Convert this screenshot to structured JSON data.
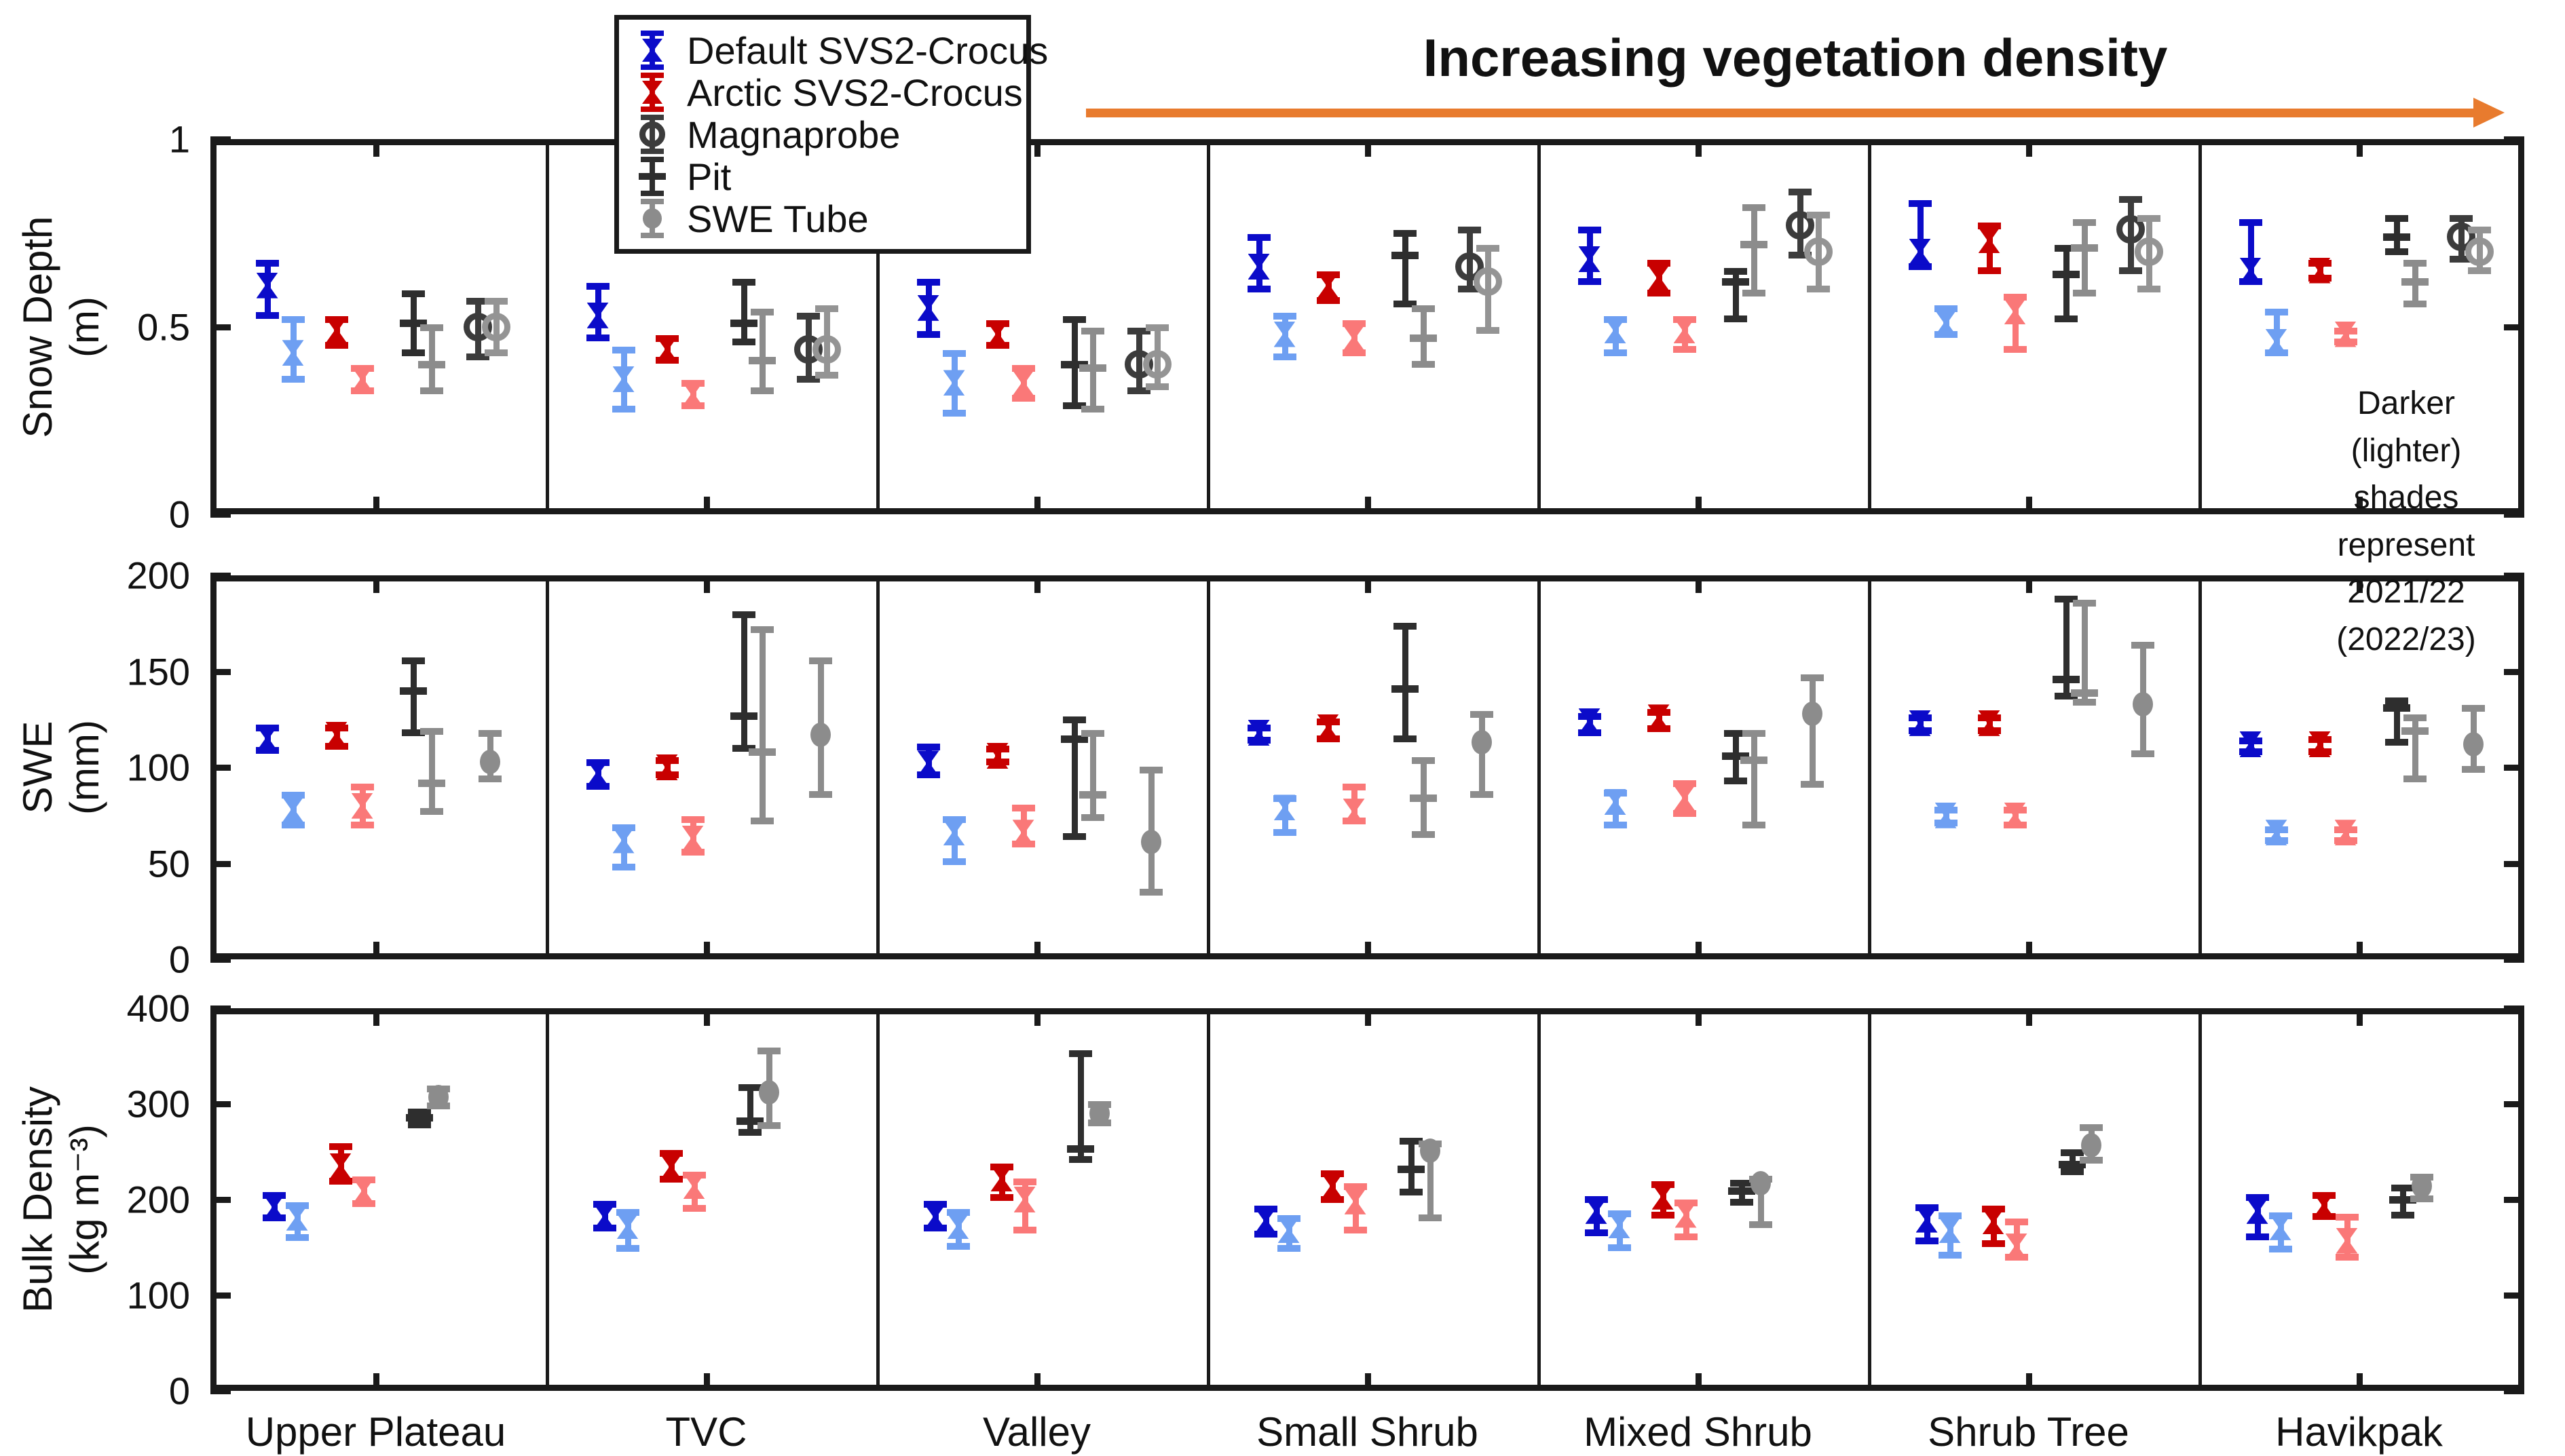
{
  "figure": {
    "background": "#ffffff",
    "axis_color": "#1a1a1a"
  },
  "annotations": {
    "veg_title": "Increasing vegetation density",
    "arrow_color": "#E87B2E",
    "shade_note_line1": "Darker (lighter)",
    "shade_note_line2": "shades represent",
    "shade_note_line3": "2021/22 (2022/23)"
  },
  "legend": {
    "items": [
      {
        "label": "Default SVS2-Crocus",
        "series": "default_dark",
        "marker": "hourglass-icon"
      },
      {
        "label": "Arctic SVS2-Crocus",
        "series": "arctic_dark",
        "marker": "hourglass-icon"
      },
      {
        "label": "Magnaprobe",
        "series": "magnaprobe_dark",
        "marker": "open-circle-icon"
      },
      {
        "label": "Pit",
        "series": "pit_dark",
        "marker": "crossbar-icon"
      },
      {
        "label": "SWE Tube",
        "series": "swetube",
        "marker": "filled-circle-icon"
      }
    ]
  },
  "colors": {
    "series": {
      "default_dark": "#0B0BC9",
      "default_light": "#6E9FF2",
      "arctic_dark": "#C80000",
      "arctic_light": "#FA7878",
      "pit_dark": "#2E2E2E",
      "pit_light": "#8C8C8C",
      "magnaprobe_dark": "#3C3C3C",
      "magnaprobe_light": "#949494",
      "swetube": "#8C8C8C"
    }
  },
  "chart_data": {
    "type": "errorbar",
    "note": "center/lo/hi values per marker; dark = 2021/22, light = 2022/23",
    "sites": [
      "Upper Plateau",
      "TVC",
      "Valley",
      "Small Shrub",
      "Mixed Shrub",
      "Shrub Tree",
      "Havikpak"
    ],
    "panels": [
      {
        "id": "snow_depth",
        "ylabel_line1": "Snow Depth",
        "ylabel_line2": "(m)",
        "ylim": [
          0,
          1
        ],
        "yticks": [
          0,
          0.5,
          1
        ],
        "series_order": [
          "default_dark",
          "default_light",
          "arctic_dark",
          "arctic_light",
          "pit_dark",
          "pit_light",
          "magnaprobe_dark",
          "magnaprobe_light"
        ],
        "data": {
          "Upper Plateau": {
            "default_dark": [
              0.61,
              0.53,
              0.67
            ],
            "default_light": [
              0.43,
              0.36,
              0.52
            ],
            "arctic_dark": [
              0.49,
              0.45,
              0.52
            ],
            "arctic_light": [
              0.36,
              0.33,
              0.39
            ],
            "pit_dark": [
              0.51,
              0.43,
              0.59
            ],
            "pit_light": [
              0.4,
              0.33,
              0.5
            ],
            "magnaprobe_dark": [
              0.5,
              0.42,
              0.57
            ],
            "magnaprobe_light": [
              0.5,
              0.43,
              0.57
            ]
          },
          "TVC": {
            "default_dark": [
              0.53,
              0.47,
              0.61
            ],
            "default_light": [
              0.36,
              0.28,
              0.44
            ],
            "arctic_dark": [
              0.44,
              0.41,
              0.47
            ],
            "arctic_light": [
              0.32,
              0.29,
              0.35
            ],
            "pit_dark": [
              0.51,
              0.46,
              0.62
            ],
            "pit_light": [
              0.41,
              0.33,
              0.54
            ],
            "magnaprobe_dark": [
              0.44,
              0.36,
              0.53
            ],
            "magnaprobe_light": [
              0.44,
              0.37,
              0.55
            ]
          },
          "Valley": {
            "default_dark": [
              0.55,
              0.48,
              0.62
            ],
            "default_light": [
              0.35,
              0.27,
              0.43
            ],
            "arctic_dark": [
              0.48,
              0.45,
              0.51
            ],
            "arctic_light": [
              0.35,
              0.31,
              0.39
            ],
            "pit_dark": [
              0.4,
              0.29,
              0.52
            ],
            "pit_light": [
              0.39,
              0.28,
              0.49
            ],
            "magnaprobe_dark": [
              0.4,
              0.33,
              0.49
            ],
            "magnaprobe_light": [
              0.4,
              0.34,
              0.5
            ]
          },
          "Small Shrub": {
            "default_dark": [
              0.66,
              0.6,
              0.74
            ],
            "default_light": [
              0.48,
              0.42,
              0.53
            ],
            "arctic_dark": [
              0.61,
              0.57,
              0.64
            ],
            "arctic_light": [
              0.47,
              0.43,
              0.51
            ],
            "pit_dark": [
              0.69,
              0.56,
              0.75
            ],
            "pit_light": [
              0.47,
              0.4,
              0.55
            ],
            "magnaprobe_dark": [
              0.66,
              0.6,
              0.76
            ],
            "magnaprobe_light": [
              0.62,
              0.49,
              0.71
            ]
          },
          "Mixed Shrub": {
            "default_dark": [
              0.68,
              0.62,
              0.76
            ],
            "default_light": [
              0.49,
              0.43,
              0.52
            ],
            "arctic_dark": [
              0.63,
              0.59,
              0.67
            ],
            "arctic_light": [
              0.49,
              0.44,
              0.52
            ],
            "pit_dark": [
              0.62,
              0.52,
              0.65
            ],
            "pit_light": [
              0.72,
              0.59,
              0.82
            ],
            "magnaprobe_dark": [
              0.77,
              0.69,
              0.86
            ],
            "magnaprobe_light": [
              0.7,
              0.6,
              0.8
            ]
          },
          "Shrub Tree": {
            "default_dark": [
              0.7,
              0.66,
              0.83
            ],
            "default_light": [
              0.51,
              0.48,
              0.55
            ],
            "arctic_dark": [
              0.73,
              0.65,
              0.77
            ],
            "arctic_light": [
              0.54,
              0.44,
              0.58
            ],
            "pit_dark": [
              0.64,
              0.52,
              0.71
            ],
            "pit_light": [
              0.71,
              0.59,
              0.78
            ],
            "magnaprobe_dark": [
              0.76,
              0.65,
              0.84
            ],
            "magnaprobe_light": [
              0.7,
              0.6,
              0.79
            ]
          },
          "Havikpak": {
            "default_dark": [
              0.65,
              0.62,
              0.78
            ],
            "default_light": [
              0.46,
              0.43,
              0.54
            ],
            "arctic_dark": [
              0.65,
              0.63,
              0.67
            ],
            "arctic_light": [
              0.48,
              0.46,
              0.49
            ],
            "pit_dark": [
              0.74,
              0.7,
              0.79
            ],
            "pit_light": [
              0.62,
              0.56,
              0.67
            ],
            "magnaprobe_dark": [
              0.74,
              0.68,
              0.79
            ],
            "magnaprobe_light": [
              0.7,
              0.65,
              0.76
            ]
          }
        }
      },
      {
        "id": "swe",
        "ylabel_line1": "SWE",
        "ylabel_line2": "(mm)",
        "ylim": [
          0,
          200
        ],
        "yticks": [
          0,
          50,
          100,
          150,
          200
        ],
        "series_order": [
          "default_dark",
          "default_light",
          "arctic_dark",
          "arctic_light",
          "pit_dark",
          "pit_light",
          "swetube"
        ],
        "data": {
          "Upper Plateau": {
            "default_dark": [
              115,
              109,
              121
            ],
            "default_light": [
              78,
              70,
              86
            ],
            "arctic_dark": [
              117,
              111,
              121
            ],
            "arctic_light": [
              80,
              70,
              90
            ],
            "pit_dark": [
              140,
              118,
              156
            ],
            "pit_light": [
              92,
              77,
              119
            ],
            "swetube": [
              103,
              94,
              118
            ]
          },
          "TVC": {
            "default_dark": [
              97,
              90,
              103
            ],
            "default_light": [
              62,
              48,
              69
            ],
            "arctic_dark": [
              100,
              96,
              104
            ],
            "arctic_light": [
              63,
              56,
              73
            ],
            "pit_dark": [
              127,
              110,
              180
            ],
            "pit_light": [
              108,
              72,
              172
            ],
            "swetube": [
              117,
              86,
              156
            ]
          },
          "Valley": {
            "default_dark": [
              102,
              96,
              111
            ],
            "default_light": [
              66,
              51,
              73
            ],
            "arctic_dark": [
              106,
              103,
              110
            ],
            "arctic_light": [
              66,
              60,
              79
            ],
            "pit_dark": [
              115,
              64,
              125
            ],
            "pit_light": [
              86,
              74,
              118
            ],
            "swetube": [
              61,
              35,
              99
            ]
          },
          "Small Shrub": {
            "default_dark": [
              118,
              114,
              121
            ],
            "default_light": [
              79,
              66,
              84
            ],
            "arctic_dark": [
              121,
              115,
              124
            ],
            "arctic_light": [
              77,
              72,
              90
            ],
            "pit_dark": [
              141,
              115,
              174
            ],
            "pit_light": [
              84,
              65,
              104
            ],
            "swetube": [
              113,
              86,
              128
            ]
          },
          "Mixed Shrub": {
            "default_dark": [
              124,
              118,
              127
            ],
            "default_light": [
              82,
              70,
              87
            ],
            "arctic_dark": [
              126,
              120,
              129
            ],
            "arctic_light": [
              84,
              76,
              92
            ],
            "pit_dark": [
              106,
              93,
              118
            ],
            "pit_light": [
              104,
              70,
              118
            ],
            "swetube": [
              128,
              91,
              147
            ]
          },
          "Shrub Tree": {
            "default_dark": [
              123,
              119,
              126
            ],
            "default_light": [
              75,
              71,
              78
            ],
            "arctic_dark": [
              123,
              119,
              126
            ],
            "arctic_light": [
              75,
              70,
              78
            ],
            "pit_dark": [
              146,
              137,
              188
            ],
            "pit_light": [
              139,
              134,
              186
            ],
            "swetube": [
              133,
              107,
              164
            ]
          },
          "Havikpak": {
            "default_dark": [
              112,
              108,
              114
            ],
            "default_light": [
              66,
              62,
              68
            ],
            "arctic_dark": [
              112,
              108,
              115
            ],
            "arctic_light": [
              66,
              62,
              68
            ],
            "pit_dark": [
              131,
              113,
              135
            ],
            "pit_light": [
              119,
              94,
              126
            ],
            "swetube": [
              112,
              99,
              131
            ]
          }
        }
      },
      {
        "id": "bulk_density",
        "ylabel_line1": "Bulk Density",
        "ylabel_line2": "(kg m⁻³)",
        "ylim": [
          0,
          400
        ],
        "yticks": [
          0,
          100,
          200,
          300,
          400
        ],
        "series_order": [
          "default_dark",
          "default_light",
          "arctic_dark",
          "arctic_light",
          "pit_dark",
          "swetube"
        ],
        "data": {
          "Upper Plateau": {
            "default_dark": [
              192,
              181,
              205
            ],
            "default_light": [
              181,
              160,
              194
            ],
            "arctic_dark": [
              235,
              219,
              256
            ],
            "arctic_light": [
              209,
              196,
              221
            ],
            "pit_dark": [
              286,
              278,
              292
            ],
            "swetube": [
              307,
              298,
              316
            ]
          },
          "TVC": {
            "default_dark": [
              182,
              170,
              196
            ],
            "default_light": [
              172,
              149,
              187
            ],
            "arctic_dark": [
              234,
              221,
              249
            ],
            "arctic_light": [
              214,
              191,
              226
            ],
            "pit_dark": [
              282,
              270,
              318
            ],
            "swetube": [
              312,
              277,
              356
            ]
          },
          "Valley": {
            "default_dark": [
              182,
              170,
              196
            ],
            "default_light": [
              172,
              151,
              187
            ],
            "arctic_dark": [
              222,
              202,
              235
            ],
            "arctic_light": [
              200,
              168,
              219
            ],
            "pit_dark": [
              253,
              242,
              353
            ],
            "swetube": [
              290,
              280,
              300
            ]
          },
          "Small Shrub": {
            "default_dark": [
              178,
              164,
              191
            ],
            "default_light": [
              168,
              149,
              181
            ],
            "arctic_dark": [
              214,
              200,
              228
            ],
            "arctic_light": [
              198,
              168,
              214
            ],
            "pit_dark": [
              232,
              208,
              262
            ],
            "swetube": [
              251,
              181,
              259
            ]
          },
          "Mixed Shrub": {
            "default_dark": [
              188,
              165,
              201
            ],
            "default_light": [
              173,
              150,
              186
            ],
            "arctic_dark": [
              203,
              184,
              216
            ],
            "arctic_light": [
              184,
              161,
              197
            ],
            "pit_dark": [
              209,
              197,
              218
            ],
            "swetube": [
              217,
              174,
              222
            ]
          },
          "Shrub Tree": {
            "default_dark": [
              179,
              157,
              192
            ],
            "default_light": [
              168,
              142,
              184
            ],
            "arctic_dark": [
              177,
              154,
              191
            ],
            "arctic_light": [
              151,
              140,
              177
            ],
            "pit_dark": [
              237,
              229,
              250
            ],
            "swetube": [
              257,
              241,
              276
            ]
          },
          "Havikpak": {
            "default_dark": [
              188,
              161,
              203
            ],
            "default_light": [
              171,
              148,
              184
            ],
            "arctic_dark": [
              194,
              182,
              205
            ],
            "arctic_light": [
              157,
              140,
              182
            ],
            "pit_dark": [
              200,
              184,
              213
            ],
            "swetube": [
              214,
              201,
              224
            ]
          }
        }
      }
    ]
  }
}
